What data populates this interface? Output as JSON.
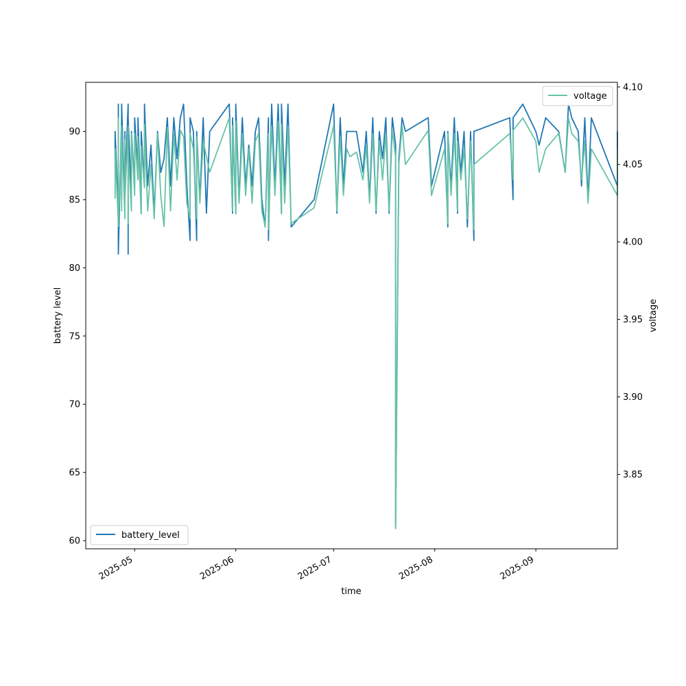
{
  "chart_data": {
    "type": "line",
    "title": "",
    "xlabel": "time",
    "ylabel": "battery level",
    "y2label": "voltage",
    "xlim": [
      "2025-04-16",
      "2025-09-26"
    ],
    "ylim": [
      59.4,
      93.6
    ],
    "y2lim": [
      3.802,
      4.103
    ],
    "x_ticks": [
      "2025-05",
      "2025-06",
      "2025-07",
      "2025-08",
      "2025-09"
    ],
    "y_ticks": [
      60,
      65,
      70,
      75,
      80,
      85,
      90
    ],
    "y2_ticks": [
      "3.85",
      "3.90",
      "3.95",
      "4.00",
      "4.05",
      "4.10"
    ],
    "legend": {
      "left_position": "lower left",
      "right_position": "upper right"
    },
    "grid": false,
    "series": [
      {
        "name": "battery_level",
        "axis": "left",
        "color": "#1f77b4",
        "points": [
          [
            "2025-04-25",
            88
          ],
          [
            "2025-04-25",
            90
          ],
          [
            "2025-04-26",
            84
          ],
          [
            "2025-04-26",
            92
          ],
          [
            "2025-04-26",
            81
          ],
          [
            "2025-04-27",
            91
          ],
          [
            "2025-04-27",
            85
          ],
          [
            "2025-04-27",
            92
          ],
          [
            "2025-04-28",
            84
          ],
          [
            "2025-04-28",
            90
          ],
          [
            "2025-04-28",
            86
          ],
          [
            "2025-04-29",
            92
          ],
          [
            "2025-04-29",
            81
          ],
          [
            "2025-04-29",
            91
          ],
          [
            "2025-04-30",
            85
          ],
          [
            "2025-04-30",
            90
          ],
          [
            "2025-05-01",
            86
          ],
          [
            "2025-05-01",
            91
          ],
          [
            "2025-05-02",
            87
          ],
          [
            "2025-05-02",
            91
          ],
          [
            "2025-05-03",
            84
          ],
          [
            "2025-05-03",
            90
          ],
          [
            "2025-05-04",
            86
          ],
          [
            "2025-05-04",
            92
          ],
          [
            "2025-05-05",
            86
          ],
          [
            "2025-05-06",
            89
          ],
          [
            "2025-05-07",
            84
          ],
          [
            "2025-05-08",
            90
          ],
          [
            "2025-05-09",
            87
          ],
          [
            "2025-05-10",
            88
          ],
          [
            "2025-05-11",
            91
          ],
          [
            "2025-05-12",
            86
          ],
          [
            "2025-05-13",
            91
          ],
          [
            "2025-05-14",
            88
          ],
          [
            "2025-05-15",
            91
          ],
          [
            "2025-05-16",
            92
          ],
          [
            "2025-05-17",
            86
          ],
          [
            "2025-05-18",
            82
          ],
          [
            "2025-05-18",
            91
          ],
          [
            "2025-05-19",
            90
          ],
          [
            "2025-05-20",
            82
          ],
          [
            "2025-05-20",
            90
          ],
          [
            "2025-05-21",
            85
          ],
          [
            "2025-05-22",
            91
          ],
          [
            "2025-05-23",
            84
          ],
          [
            "2025-05-24",
            90
          ],
          [
            "2025-05-30",
            92
          ],
          [
            "2025-05-31",
            84
          ],
          [
            "2025-05-31",
            91
          ],
          [
            "2025-06-01",
            84
          ],
          [
            "2025-06-01",
            92
          ],
          [
            "2025-06-02",
            85
          ],
          [
            "2025-06-03",
            91
          ],
          [
            "2025-06-04",
            86
          ],
          [
            "2025-06-05",
            89
          ],
          [
            "2025-06-06",
            86
          ],
          [
            "2025-06-07",
            90
          ],
          [
            "2025-06-08",
            91
          ],
          [
            "2025-06-09",
            85
          ],
          [
            "2025-06-10",
            83
          ],
          [
            "2025-06-11",
            91
          ],
          [
            "2025-06-11",
            82
          ],
          [
            "2025-06-12",
            92
          ],
          [
            "2025-06-13",
            86
          ],
          [
            "2025-06-14",
            92
          ],
          [
            "2025-06-15",
            84
          ],
          [
            "2025-06-15",
            92
          ],
          [
            "2025-06-16",
            86
          ],
          [
            "2025-06-17",
            92
          ],
          [
            "2025-06-18",
            83
          ],
          [
            "2025-06-25",
            85
          ],
          [
            "2025-07-01",
            92
          ],
          [
            "2025-07-02",
            84
          ],
          [
            "2025-07-03",
            91
          ],
          [
            "2025-07-04",
            86
          ],
          [
            "2025-07-05",
            90
          ],
          [
            "2025-07-08",
            90
          ],
          [
            "2025-07-10",
            87
          ],
          [
            "2025-07-11",
            90
          ],
          [
            "2025-07-12",
            85
          ],
          [
            "2025-07-13",
            91
          ],
          [
            "2025-07-14",
            84
          ],
          [
            "2025-07-15",
            90
          ],
          [
            "2025-07-16",
            88
          ],
          [
            "2025-07-17",
            91
          ],
          [
            "2025-07-18",
            84
          ],
          [
            "2025-07-19",
            91
          ],
          [
            "2025-07-20",
            89
          ],
          [
            "2025-07-20",
            61
          ],
          [
            "2025-07-21",
            88
          ],
          [
            "2025-07-22",
            91
          ],
          [
            "2025-07-23",
            90
          ],
          [
            "2025-07-30",
            91
          ],
          [
            "2025-07-31",
            86
          ],
          [
            "2025-08-04",
            90
          ],
          [
            "2025-08-05",
            83
          ],
          [
            "2025-08-05",
            90
          ],
          [
            "2025-08-06",
            86
          ],
          [
            "2025-08-07",
            91
          ],
          [
            "2025-08-08",
            84
          ],
          [
            "2025-08-08",
            90
          ],
          [
            "2025-08-09",
            87
          ],
          [
            "2025-08-10",
            90
          ],
          [
            "2025-08-11",
            83
          ],
          [
            "2025-08-12",
            90
          ],
          [
            "2025-08-13",
            82
          ],
          [
            "2025-08-13",
            90
          ],
          [
            "2025-08-24",
            91
          ],
          [
            "2025-08-25",
            85
          ],
          [
            "2025-08-25",
            91
          ],
          [
            "2025-08-28",
            92
          ],
          [
            "2025-09-01",
            90
          ],
          [
            "2025-09-02",
            89
          ],
          [
            "2025-09-04",
            91
          ],
          [
            "2025-09-08",
            90
          ],
          [
            "2025-09-10",
            87
          ],
          [
            "2025-09-11",
            92
          ],
          [
            "2025-09-12",
            91
          ],
          [
            "2025-09-14",
            90
          ],
          [
            "2025-09-15",
            86
          ],
          [
            "2025-09-16",
            91
          ],
          [
            "2025-09-17",
            85
          ],
          [
            "2025-09-18",
            91
          ],
          [
            "2025-09-26",
            86
          ],
          [
            "2025-09-26",
            90
          ]
        ]
      },
      {
        "name": "voltage",
        "axis": "right",
        "color": "#66c2a5",
        "points": [
          [
            "2025-04-25",
            4.028
          ],
          [
            "2025-04-25",
            4.06
          ],
          [
            "2025-04-26",
            4.012
          ],
          [
            "2025-04-26",
            4.08
          ],
          [
            "2025-04-26",
            4.01
          ],
          [
            "2025-04-27",
            4.07
          ],
          [
            "2025-04-27",
            4.02
          ],
          [
            "2025-04-27",
            4.075
          ],
          [
            "2025-04-28",
            4.015
          ],
          [
            "2025-04-28",
            4.066
          ],
          [
            "2025-04-28",
            4.028
          ],
          [
            "2025-04-29",
            4.075
          ],
          [
            "2025-04-29",
            4.012
          ],
          [
            "2025-04-29",
            4.06
          ],
          [
            "2025-04-30",
            4.02
          ],
          [
            "2025-04-30",
            4.07
          ],
          [
            "2025-05-01",
            4.03
          ],
          [
            "2025-05-01",
            4.07
          ],
          [
            "2025-05-02",
            4.04
          ],
          [
            "2025-05-02",
            4.068
          ],
          [
            "2025-05-03",
            4.018
          ],
          [
            "2025-05-03",
            4.062
          ],
          [
            "2025-05-04",
            4.035
          ],
          [
            "2025-05-04",
            4.076
          ],
          [
            "2025-05-05",
            4.02
          ],
          [
            "2025-05-06",
            4.05
          ],
          [
            "2025-05-07",
            4.015
          ],
          [
            "2025-05-08",
            4.07
          ],
          [
            "2025-05-09",
            4.03
          ],
          [
            "2025-05-10",
            4.01
          ],
          [
            "2025-05-11",
            4.074
          ],
          [
            "2025-05-12",
            4.02
          ],
          [
            "2025-05-13",
            4.07
          ],
          [
            "2025-05-14",
            4.04
          ],
          [
            "2025-05-15",
            4.072
          ],
          [
            "2025-05-16",
            4.068
          ],
          [
            "2025-05-17",
            4.025
          ],
          [
            "2025-05-18",
            4.015
          ],
          [
            "2025-05-18",
            4.07
          ],
          [
            "2025-05-19",
            4.06
          ],
          [
            "2025-05-20",
            4.015
          ],
          [
            "2025-05-20",
            4.068
          ],
          [
            "2025-05-21",
            4.025
          ],
          [
            "2025-05-22",
            4.065
          ],
          [
            "2025-05-24",
            4.045
          ],
          [
            "2025-05-30",
            4.08
          ],
          [
            "2025-05-31",
            4.02
          ],
          [
            "2025-05-31",
            4.075
          ],
          [
            "2025-06-01",
            4.018
          ],
          [
            "2025-06-01",
            4.078
          ],
          [
            "2025-06-02",
            4.025
          ],
          [
            "2025-06-03",
            4.07
          ],
          [
            "2025-06-04",
            4.03
          ],
          [
            "2025-06-05",
            4.06
          ],
          [
            "2025-06-06",
            4.025
          ],
          [
            "2025-06-07",
            4.065
          ],
          [
            "2025-06-08",
            4.07
          ],
          [
            "2025-06-09",
            4.02
          ],
          [
            "2025-06-10",
            4.01
          ],
          [
            "2025-06-11",
            4.07
          ],
          [
            "2025-06-11",
            4.008
          ],
          [
            "2025-06-12",
            4.075
          ],
          [
            "2025-06-13",
            4.03
          ],
          [
            "2025-06-14",
            4.078
          ],
          [
            "2025-06-15",
            4.018
          ],
          [
            "2025-06-15",
            4.076
          ],
          [
            "2025-06-16",
            4.025
          ],
          [
            "2025-06-17",
            4.075
          ],
          [
            "2025-06-18",
            4.012
          ],
          [
            "2025-06-25",
            4.022
          ],
          [
            "2025-07-01",
            4.075
          ],
          [
            "2025-07-02",
            4.02
          ],
          [
            "2025-07-03",
            4.068
          ],
          [
            "2025-07-04",
            4.03
          ],
          [
            "2025-07-05",
            4.06
          ],
          [
            "2025-07-06",
            4.055
          ],
          [
            "2025-07-08",
            4.058
          ],
          [
            "2025-07-10",
            4.04
          ],
          [
            "2025-07-11",
            4.062
          ],
          [
            "2025-07-12",
            4.025
          ],
          [
            "2025-07-13",
            4.07
          ],
          [
            "2025-07-14",
            4.02
          ],
          [
            "2025-07-15",
            4.065
          ],
          [
            "2025-07-16",
            4.04
          ],
          [
            "2025-07-17",
            4.07
          ],
          [
            "2025-07-18",
            4.02
          ],
          [
            "2025-07-19",
            4.072
          ],
          [
            "2025-07-20",
            4.055
          ],
          [
            "2025-07-20",
            3.815
          ],
          [
            "2025-07-21",
            4.05
          ],
          [
            "2025-07-22",
            4.075
          ],
          [
            "2025-07-23",
            4.05
          ],
          [
            "2025-07-30",
            4.072
          ],
          [
            "2025-07-31",
            4.03
          ],
          [
            "2025-08-04",
            4.06
          ],
          [
            "2025-08-05",
            4.012
          ],
          [
            "2025-08-05",
            4.07
          ],
          [
            "2025-08-06",
            4.03
          ],
          [
            "2025-08-07",
            4.07
          ],
          [
            "2025-08-08",
            4.02
          ],
          [
            "2025-08-08",
            4.065
          ],
          [
            "2025-08-09",
            4.04
          ],
          [
            "2025-08-10",
            4.06
          ],
          [
            "2025-08-11",
            4.015
          ],
          [
            "2025-08-12",
            4.065
          ],
          [
            "2025-08-13",
            4.008
          ],
          [
            "2025-08-13",
            4.05
          ],
          [
            "2025-08-24",
            4.07
          ],
          [
            "2025-08-25",
            4.04
          ],
          [
            "2025-08-25",
            4.072
          ],
          [
            "2025-08-28",
            4.08
          ],
          [
            "2025-09-01",
            4.065
          ],
          [
            "2025-09-02",
            4.045
          ],
          [
            "2025-09-04",
            4.06
          ],
          [
            "2025-09-08",
            4.07
          ],
          [
            "2025-09-10",
            4.045
          ],
          [
            "2025-09-11",
            4.08
          ],
          [
            "2025-09-12",
            4.07
          ],
          [
            "2025-09-14",
            4.065
          ],
          [
            "2025-09-15",
            4.04
          ],
          [
            "2025-09-16",
            4.065
          ],
          [
            "2025-09-17",
            4.025
          ],
          [
            "2025-09-18",
            4.06
          ],
          [
            "2025-09-26",
            4.03
          ],
          [
            "2025-09-26",
            4.06
          ]
        ]
      }
    ]
  }
}
